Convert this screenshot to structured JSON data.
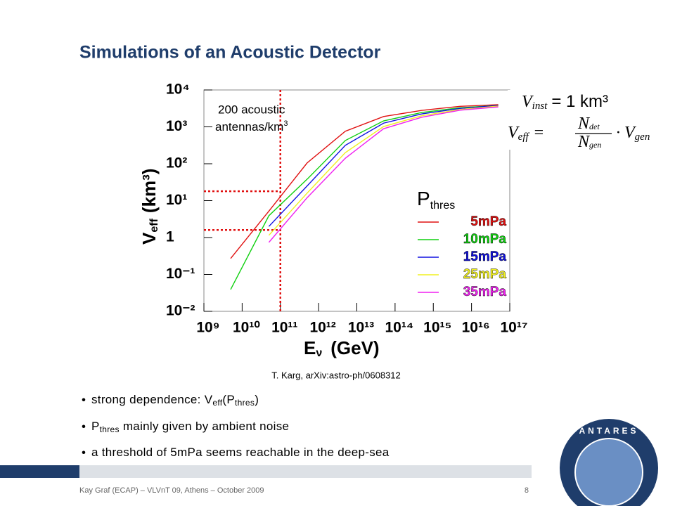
{
  "slide_title": "Simulations of an Acoustic Detector",
  "citation": "T. Karg, arXiv:astro-ph/0608312",
  "bullets": [
    {
      "parts": [
        "strong dependence: V",
        "eff",
        "(P",
        "thres",
        ")"
      ]
    },
    {
      "parts": [
        "P",
        "thres",
        " mainly given by ambient noise"
      ]
    },
    {
      "parts": [
        "a threshold of 5mPa seems reachable in the deep-sea"
      ]
    }
  ],
  "formulas": {
    "inst_lhs": "V",
    "inst_sub": "inst",
    "inst_rhs": "= 1 km³",
    "eff_lhs": "V",
    "eff_sub": "eff",
    "eq": "=",
    "num": "N",
    "num_sub": "det",
    "den": "N",
    "den_sub": "gen",
    "times": "· V",
    "gen_sub": "gen"
  },
  "footer": "Kay Graf (ECAP) – VLVnT 09, Athens – October 2009",
  "page_number": "8",
  "logo_text": "ANTARES",
  "chart_data": {
    "type": "line",
    "x_scale": "log",
    "y_scale": "log",
    "x_label": "E",
    "x_label_sub": "ν",
    "x_label_unit": "(GeV)",
    "y_label": "V",
    "y_label_sub": "eff",
    "y_label_unit": "(km³)",
    "legend_title": "P",
    "legend_title_sub": "thres",
    "annotation": [
      "200 acoustic",
      "antennas/km",
      "3"
    ],
    "reference_color": "#e01010",
    "reference_x": 100000000000.0,
    "reference_y": [
      18,
      1.6
    ],
    "xlim": [
      1000000000.0,
      1e+17
    ],
    "ylim": [
      0.01,
      10000
    ],
    "xticks": [
      {
        "value": 1000000000.0,
        "label": "10⁹"
      },
      {
        "value": 10000000000.0,
        "label": "10¹⁰"
      },
      {
        "value": 100000000000.0,
        "label": "10¹¹"
      },
      {
        "value": 1000000000000.0,
        "label": "10¹²"
      },
      {
        "value": 10000000000000.0,
        "label": "10¹³"
      },
      {
        "value": 100000000000000.0,
        "label": "10¹⁴"
      },
      {
        "value": 1000000000000000.0,
        "label": "10¹⁵"
      },
      {
        "value": 1e+16,
        "label": "10¹⁶"
      },
      {
        "value": 1e+17,
        "label": "10¹⁷"
      }
    ],
    "yticks": [
      {
        "value": 0.01,
        "label": "10⁻²"
      },
      {
        "value": 0.1,
        "label": "10⁻¹"
      },
      1,
      {
        "value": 10,
        "label": "10¹"
      },
      {
        "value": 100,
        "label": "10²"
      },
      {
        "value": 1000,
        "label": "10³"
      },
      {
        "value": 10000,
        "label": "10⁴"
      }
    ],
    "x": [
      5000000000.0,
      50000000000.0,
      500000000000.0,
      5000000000000.0,
      50000000000000.0,
      500000000000000.0,
      5000000000000000.0,
      5e+16
    ],
    "series": [
      {
        "name": "5mPa",
        "color": "#e01010",
        "values": [
          0.27,
          5.2,
          105,
          760,
          1900,
          2800,
          3600,
          4000
        ]
      },
      {
        "name": "10mPa",
        "color": "#10d010",
        "values": [
          0.039,
          3.9,
          38,
          427,
          1450,
          2450,
          3300,
          3800
        ]
      },
      {
        "name": "15mPa",
        "color": "#1010e0",
        "values": [
          null,
          2.0,
          25,
          316,
          1260,
          2240,
          3160,
          3800
        ]
      },
      {
        "name": "25mPa",
        "color": "#f0f020",
        "values": [
          null,
          1.15,
          16,
          200,
          1020,
          2000,
          2950,
          3650
        ]
      },
      {
        "name": "35mPa",
        "color": "#f020f0",
        "values": [
          null,
          0.74,
          12,
          141,
          890,
          1820,
          2820,
          3470
        ]
      }
    ]
  }
}
